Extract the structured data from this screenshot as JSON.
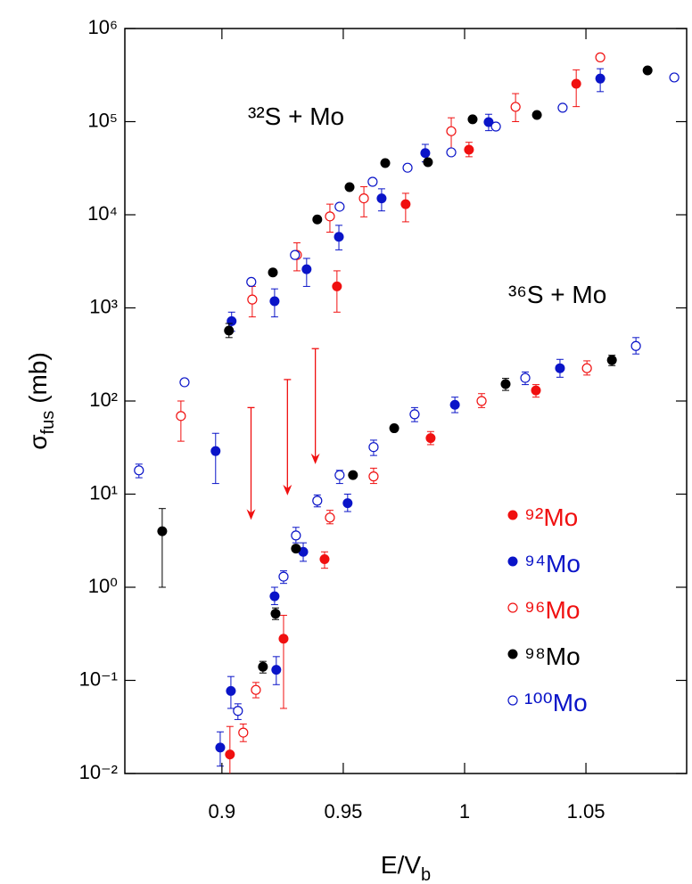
{
  "chart_data": {
    "type": "scatter",
    "xlabel": {
      "main": "E/V",
      "sub": "b"
    },
    "ylabel": {
      "symbol": "σ",
      "sub": "fus",
      "unit": "(mb)"
    },
    "log_y": true,
    "xlim": [
      0.86,
      1.0915
    ],
    "ylim": [
      0.01,
      1000000
    ],
    "xticks": [
      0.9,
      0.95,
      1,
      1.05
    ],
    "yticks": [
      {
        "value": 0.01,
        "label": "10⁻²"
      },
      {
        "value": 0.1,
        "label": "10⁻¹"
      },
      {
        "value": 1,
        "label": "10⁰"
      },
      {
        "value": 10,
        "label": "10¹"
      },
      {
        "value": 100,
        "label": "10²"
      },
      {
        "value": 1000,
        "label": "10³"
      },
      {
        "value": 10000,
        "label": "10⁴"
      },
      {
        "value": 100000,
        "label": "10⁵"
      },
      {
        "value": 1000000,
        "label": "10⁶"
      }
    ],
    "annotations": [
      "³²S + Mo",
      "³⁶S + Mo"
    ],
    "series": [
      {
        "name": "⁹²Mo",
        "color": "#f01010",
        "filled": true,
        "x": [
          0.9033,
          0.9254,
          0.9423,
          0.986,
          1.0294,
          0.9474,
          0.9757,
          1.0018,
          1.046
        ],
        "values": [
          0.016,
          0.28,
          2.0,
          40,
          130,
          1700,
          13000,
          50000,
          255000
        ],
        "y_low": [
          0.009,
          0.05,
          1.6,
          34,
          110,
          900,
          8400,
          42000,
          145000
        ],
        "y_high": [
          0.032,
          0.5,
          2.4,
          47,
          150,
          2500,
          17000,
          60000,
          360000
        ]
      },
      {
        "name": "⁹⁴Mo",
        "color": "#0a14c8",
        "filled": true,
        "x": [
          0.904,
          0.9217,
          0.9349,
          0.9482,
          0.9658,
          0.9838,
          1.0099,
          1.0559,
          0.8993,
          0.9037,
          0.9224,
          0.9217,
          0.9335,
          0.9518,
          0.996,
          1.0393,
          0.8974
        ],
        "values": [
          720,
          1180,
          2600,
          5800,
          15000,
          46000,
          99000,
          290000,
          0.019,
          0.077,
          0.13,
          0.8,
          2.4,
          8.0,
          91,
          225,
          29
        ],
        "y_low": [
          560,
          800,
          1700,
          4200,
          11000,
          37000,
          80000,
          210000,
          0.012,
          0.05,
          0.09,
          0.65,
          1.9,
          6.5,
          75,
          180,
          13
        ],
        "y_high": [
          900,
          1600,
          3400,
          7700,
          19000,
          57000,
          120000,
          370000,
          0.028,
          0.11,
          0.18,
          1.0,
          3.0,
          10,
          110,
          280,
          45
        ]
      },
      {
        "name": "⁹⁶Mo",
        "color": "#f01010",
        "filled": false,
        "x": [
          0.9088,
          0.914,
          0.8831,
          0.9125,
          0.9309,
          0.9445,
          0.9585,
          0.9945,
          1.021,
          1.0559,
          0.9445,
          0.9625,
          1.007,
          1.0504
        ],
        "values": [
          0.0275,
          0.079,
          69,
          1230,
          3700,
          9600,
          15000,
          79000,
          144000,
          490000,
          5.6,
          15.5,
          100,
          225
        ],
        "y_low": [
          0.022,
          0.065,
          37,
          800,
          2500,
          6500,
          9500,
          50000,
          100000,
          null,
          4.8,
          13,
          85,
          190
        ],
        "y_high": [
          0.034,
          0.095,
          100,
          1700,
          5000,
          13000,
          20000,
          110000,
          200000,
          null,
          6.7,
          19,
          120,
          270
        ]
      },
      {
        "name": "⁹⁸Mo",
        "color": "#000000",
        "filled": true,
        "x": [
          0.9029,
          0.921,
          0.9393,
          0.9526,
          0.9673,
          0.9849,
          1.0033,
          1.0298,
          1.0754,
          0.8754,
          0.9221,
          0.9169,
          0.9305,
          0.954,
          0.971,
          1.0169,
          1.0607
        ],
        "values": [
          570,
          2400,
          8900,
          19800,
          35900,
          36700,
          106000,
          118000,
          355000,
          4.0,
          0.52,
          0.14,
          2.6,
          16,
          51,
          152,
          275
        ],
        "y_low": [
          480,
          null,
          null,
          null,
          null,
          null,
          null,
          null,
          null,
          1.0,
          0.45,
          0.12,
          null,
          null,
          null,
          130,
          240
        ],
        "y_high": [
          680,
          null,
          null,
          null,
          null,
          null,
          null,
          null,
          null,
          7.0,
          0.6,
          0.16,
          null,
          null,
          null,
          175,
          310
        ]
      },
      {
        "name": "¹⁰⁰Mo",
        "color": "#0a14c8",
        "filled": false,
        "x": [
          0.9121,
          0.9301,
          0.9485,
          0.9621,
          0.9765,
          0.9945,
          1.0129,
          1.0404,
          1.0864,
          0.8658,
          0.8846,
          0.9066,
          0.9254,
          0.9305,
          0.9393,
          0.9485,
          0.9625,
          0.9794,
          1.025,
          1.0706
        ],
        "values": [
          1900,
          3700,
          12200,
          22600,
          32000,
          46800,
          88600,
          141000,
          298000,
          18,
          159,
          0.047,
          1.3,
          3.6,
          8.5,
          16,
          32,
          72,
          177,
          390
        ],
        "y_low": [
          null,
          null,
          null,
          null,
          null,
          null,
          null,
          null,
          null,
          15,
          null,
          0.038,
          1.1,
          3.0,
          7.3,
          13,
          26,
          60,
          150,
          320
        ],
        "y_high": [
          null,
          null,
          null,
          null,
          null,
          null,
          null,
          null,
          null,
          21,
          null,
          0.056,
          1.5,
          4.4,
          9.8,
          18,
          38,
          85,
          205,
          480
        ]
      }
    ],
    "upper_limits": {
      "color": "#f01010",
      "x": [
        0.912,
        0.927,
        0.9385
      ],
      "from": [
        85,
        170,
        365
      ],
      "to": [
        5.3,
        9.7,
        21
      ]
    }
  }
}
